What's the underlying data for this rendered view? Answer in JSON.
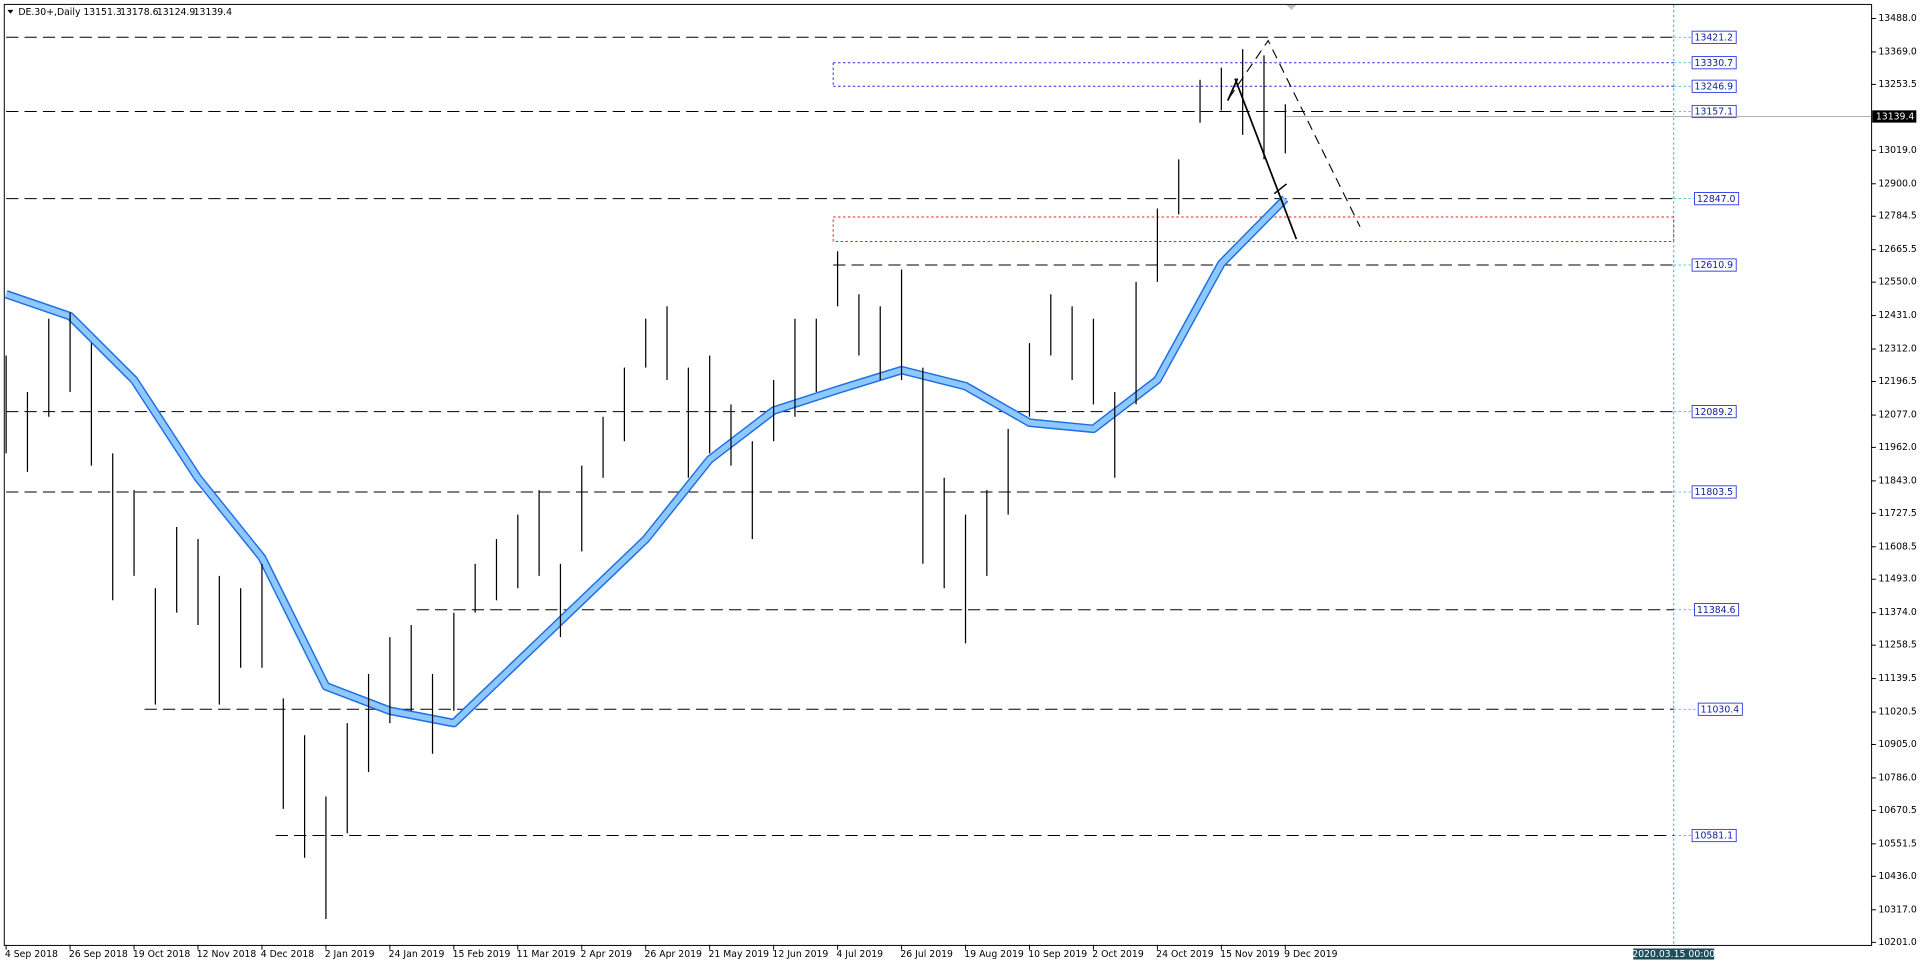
{
  "chart_data": {
    "type": "range",
    "symbol": "DE.30+,Daily",
    "ohlc": [
      13151.3,
      13178.6,
      13124.9,
      13139.4
    ],
    "x_labels": [
      "4 Sep 2018",
      "26 Sep 2018",
      "19 Oct 2018",
      "12 Nov 2018",
      "4 Dec 2018",
      "2 Jan 2019",
      "24 Jan 2019",
      "15 Feb 2019",
      "11 Mar 2019",
      "2 Apr 2019",
      "26 Apr 2019",
      "21 May 2019",
      "12 Jun 2019",
      "4 Jul 2019",
      "26 Jul 2019",
      "19 Aug 2019",
      "10 Sep 2019",
      "2 Oct 2019",
      "24 Oct 2019",
      "15 Nov 2019",
      "9 Dec 2019"
    ],
    "future_time_label": "2020.03.15 00:00",
    "highs": [
      12289,
      12159,
      12420,
      12442,
      12333,
      11941,
      11810,
      11461,
      11679,
      11636,
      11505,
      11461,
      11548,
      11069,
      10938,
      10720,
      10981,
      11156,
      11287,
      11330,
      11156,
      11374,
      11548,
      11636,
      11723,
      11810,
      11548,
      11897,
      12071,
      12246,
      12420,
      12464,
      12246,
      12289,
      12115,
      11984,
      12202,
      12420,
      12420,
      12660,
      12507,
      12464,
      12595,
      12246,
      11854,
      11723,
      11810,
      12028,
      12333,
      12507,
      12464,
      12420,
      12159,
      12551,
      12812,
      12987,
      13270,
      13313,
      13379,
      13357,
      13183
    ],
    "lows": [
      11941,
      11875,
      12071,
      12159,
      11897,
      11418,
      11505,
      11047,
      11374,
      11330,
      11047,
      11178,
      11178,
      10676,
      10502,
      10284,
      10589,
      10807,
      10981,
      11025,
      10872,
      11025,
      11374,
      11418,
      11461,
      11505,
      11287,
      11592,
      11854,
      11984,
      12246,
      12202,
      11854,
      11941,
      11897,
      11636,
      11984,
      12071,
      12159,
      12464,
      12289,
      12202,
      12202,
      11548,
      11461,
      11265,
      11505,
      11723,
      12071,
      12289,
      12202,
      12115,
      11854,
      12115,
      12551,
      12791,
      13117,
      13161,
      13074,
      12987,
      13008
    ],
    "bar_color": "#000000",
    "ma": [
      12507,
      12429,
      12202,
      11853,
      11570,
      11112,
      11025,
      10981,
      11199,
      11417,
      11635,
      11919,
      12093,
      12167,
      12237,
      12180,
      12050,
      12028,
      12202,
      12616,
      12847
    ],
    "ma_color": "#1e6fe0",
    "ma_fill": "#8ec8ff",
    "current_price": 13139.4,
    "levels": [
      {
        "value": 13421.2,
        "style": "dash"
      },
      {
        "value": 13330.7,
        "style": "dot"
      },
      {
        "value": 13246.9,
        "style": "dot"
      },
      {
        "value": 13157.1,
        "style": "dash"
      },
      {
        "value": 12847.0,
        "label": "12847.0",
        "style": "dash"
      },
      {
        "value": 12610.9,
        "style": "dash"
      },
      {
        "value": 12089.2,
        "style": "dash"
      },
      {
        "value": 11803.5,
        "style": "dash"
      },
      {
        "value": 11384.6,
        "style": "dash"
      },
      {
        "value": 11030.4,
        "style": "dash"
      },
      {
        "value": 10581.1,
        "style": "dash"
      }
    ],
    "ylim": [
      10201.0,
      13488.0
    ],
    "yticks": [
      {
        "value": 13488.0,
        "label": "13488.0"
      },
      {
        "value": 13369.0,
        "label": "13369.0"
      },
      13253.5,
      {
        "value": 13019.0,
        "label": "13019.0"
      },
      {
        "value": 12900.0,
        "label": "12900.0"
      },
      12784.5,
      12665.5,
      {
        "value": 12550.0,
        "label": "12550.0"
      },
      {
        "value": 12431.0,
        "label": "12431.0"
      },
      {
        "value": 12312.0,
        "label": "12312.0"
      },
      12196.5,
      {
        "value": 12077.0,
        "label": "12077.0"
      },
      {
        "value": 11962.0,
        "label": "11962.0"
      },
      {
        "value": 11843.0,
        "label": "11843.0"
      },
      11727.5,
      11608.5,
      {
        "value": 11493.0,
        "label": "11493.0"
      },
      {
        "value": 11374.0,
        "label": "11374.0"
      },
      11258.5,
      11139.5,
      11020.5,
      {
        "value": 10905.0,
        "label": "10905.0"
      },
      {
        "value": 10786.0,
        "label": "10786.0"
      },
      10670.5,
      10551.5,
      {
        "value": 10436.0,
        "label": "10436.0"
      },
      {
        "value": 10317.0,
        "label": "10317.0"
      },
      {
        "value": 10201.0,
        "label": "10201.0"
      }
    ]
  }
}
